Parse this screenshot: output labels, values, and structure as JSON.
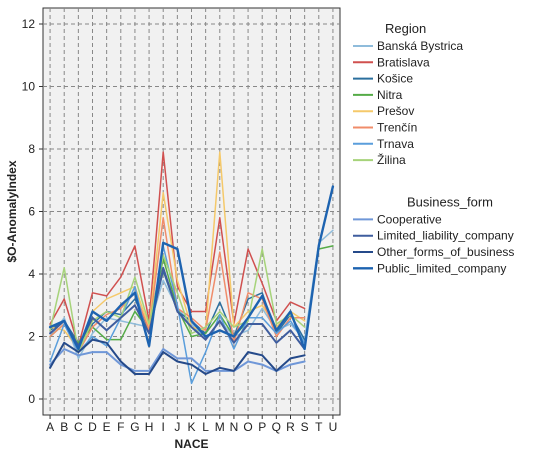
{
  "chart_data": {
    "type": "line",
    "xlabel": "NACE",
    "ylabel": "$O-AnomalyIndex",
    "ylim": [
      0,
      12
    ],
    "yticks": [
      0,
      2,
      4,
      6,
      8,
      10,
      12
    ],
    "grid": true,
    "legend_position": "right",
    "categories": [
      "A",
      "B",
      "C",
      "D",
      "E",
      "F",
      "G",
      "H",
      "I",
      "J",
      "K",
      "L",
      "M",
      "N",
      "O",
      "P",
      "Q",
      "R",
      "S",
      "T",
      "U"
    ],
    "legend_groups": [
      {
        "title": "Region",
        "series": [
          {
            "name": "Banská Bystrica",
            "color": "#8fbcdb",
            "width": 1.5,
            "values": [
              2.0,
              2.6,
              1.3,
              2.1,
              2.6,
              2.5,
              2.4,
              2.3,
              3.8,
              2.9,
              2.4,
              1.9,
              2.5,
              2.0,
              2.2,
              2.9,
              2.2,
              2.4,
              1.9,
              5.0,
              5.4
            ]
          },
          {
            "name": "Bratislava",
            "color": "#d0504f",
            "width": 1.5,
            "values": [
              2.4,
              3.2,
              1.7,
              3.4,
              3.3,
              3.9,
              4.9,
              2.5,
              7.9,
              3.6,
              2.8,
              2.8,
              5.8,
              2.4,
              4.8,
              3.7,
              2.5,
              3.1,
              2.9,
              null,
              null
            ]
          },
          {
            "name": "Košice",
            "color": "#2b6f9e",
            "width": 1.5,
            "values": [
              2.2,
              2.5,
              1.8,
              2.4,
              2.8,
              2.7,
              3.2,
              2.2,
              4.1,
              2.8,
              2.5,
              2.1,
              3.1,
              2.0,
              3.2,
              3.4,
              2.1,
              2.7,
              1.9,
              null,
              null
            ]
          },
          {
            "name": "Nitra",
            "color": "#55ab47",
            "width": 1.5,
            "values": [
              2.0,
              2.4,
              1.8,
              2.3,
              1.9,
              1.9,
              2.8,
              2.2,
              4.5,
              2.9,
              2.0,
              2.1,
              2.7,
              2.0,
              2.5,
              null,
              null,
              null,
              null,
              4.8,
              4.9
            ]
          },
          {
            "name": "Prešov",
            "color": "#f5c96a",
            "width": 1.5,
            "values": [
              2.3,
              2.2,
              1.6,
              2.8,
              3.2,
              3.4,
              3.6,
              2.3,
              6.6,
              3.8,
              2.3,
              2.2,
              7.9,
              2.3,
              2.8,
              3.0,
              2.3,
              2.8,
              2.5,
              null,
              null
            ]
          },
          {
            "name": "Trenčín",
            "color": "#f08c6a",
            "width": 1.5,
            "values": [
              2.0,
              2.4,
              1.5,
              2.3,
              2.7,
              2.9,
              3.4,
              2.2,
              5.8,
              2.9,
              2.6,
              2.2,
              4.7,
              1.8,
              3.4,
              3.2,
              2.0,
              2.6,
              2.6,
              null,
              null
            ]
          },
          {
            "name": "Trnava",
            "color": "#5a9edc",
            "width": 1.5,
            "values": [
              1.2,
              2.4,
              1.5,
              2.0,
              1.7,
              2.6,
              3.6,
              1.7,
              4.9,
              3.0,
              0.5,
              1.5,
              2.7,
              1.6,
              2.6,
              2.6,
              2.1,
              2.5,
              1.8,
              null,
              null
            ]
          },
          {
            "name": "Žilina",
            "color": "#a6d37a",
            "width": 1.5,
            "values": [
              2.2,
              4.2,
              1.5,
              2.5,
              2.8,
              2.6,
              3.9,
              2.4,
              4.6,
              3.4,
              2.1,
              2.3,
              2.8,
              2.3,
              2.5,
              4.8,
              2.4,
              2.7,
              2.3,
              null,
              null
            ]
          }
        ]
      },
      {
        "title": "Business_form",
        "series": [
          {
            "name": "Cooperative",
            "color": "#6f97d8",
            "width": 2.0,
            "values": [
              1.1,
              1.6,
              1.4,
              1.5,
              1.5,
              1.1,
              0.9,
              0.9,
              1.6,
              1.3,
              1.3,
              0.9,
              0.9,
              0.9,
              1.2,
              1.1,
              0.9,
              1.1,
              1.2,
              null,
              null
            ]
          },
          {
            "name": "Limited_liability_company",
            "color": "#3f5d9e",
            "width": 2.0,
            "values": [
              2.1,
              2.5,
              1.7,
              2.6,
              2.2,
              2.6,
              3.0,
              2.1,
              4.2,
              2.8,
              2.3,
              1.9,
              2.5,
              1.8,
              2.4,
              2.4,
              1.8,
              2.2,
              1.6,
              null,
              null
            ]
          },
          {
            "name": "Other_forms_of_business",
            "color": "#254a8a",
            "width": 2.0,
            "values": [
              1.0,
              1.8,
              1.5,
              1.9,
              1.8,
              1.2,
              0.8,
              0.8,
              1.5,
              1.2,
              1.1,
              0.8,
              1.0,
              0.9,
              1.5,
              1.4,
              0.9,
              1.3,
              1.4,
              null,
              null
            ]
          },
          {
            "name": "Public_limited_company",
            "color": "#1d63b0",
            "width": 2.4,
            "values": [
              2.3,
              2.5,
              1.6,
              2.8,
              2.5,
              3.0,
              3.4,
              1.7,
              5.0,
              4.8,
              2.5,
              2.0,
              2.2,
              2.0,
              2.6,
              3.3,
              2.2,
              2.8,
              1.6,
              4.9,
              6.8
            ]
          }
        ]
      }
    ]
  }
}
